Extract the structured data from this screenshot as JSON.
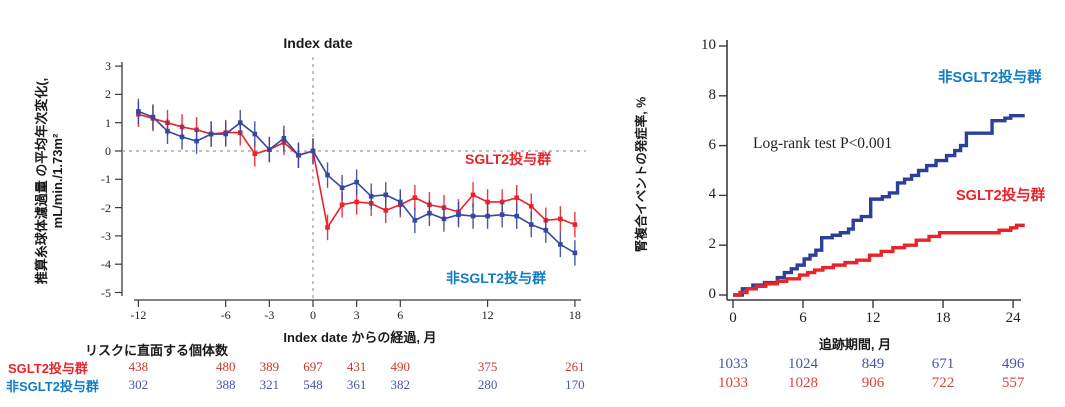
{
  "colors": {
    "red_series": "#e8232a",
    "blue_series_left": "#3547a0",
    "blue_series_km": "#2c3f9a",
    "blue_label": "#0e7dc4",
    "table_red": "#c8382c",
    "table_blue": "#4a55a8",
    "axis": "#3a3a3a",
    "dashed": "#999999"
  },
  "left_chart": {
    "index_date_label": "Index date",
    "ylabel_line1": "推算糸球体濾過量 の平均年次変化(,",
    "ylabel_line2": "mL/min./1.73m²",
    "xlabel": "Index date からの経過, 月",
    "series_label_red": "SGLT2投与群",
    "series_label_blue": "非SGLT2投与群"
  },
  "left_risk_table": {
    "title": "リスクに直面する個体数",
    "row_red_label": "SGLT2投与群",
    "row_blue_label": "非SGLT2投与群"
  },
  "right_chart": {
    "ylabel": "腎複合イベントの発症率, %",
    "xlabel": "追跡期間, 月",
    "annotation": "Log-rank test P<0.001",
    "series_label_blue": "非SGLT2投与群",
    "series_label_red": "SGLT2投与群"
  },
  "chart_data": [
    {
      "type": "line",
      "title": "Index date",
      "xlabel": "Index date からの経過, 月",
      "ylabel": "推算糸球体濾過量 の平均年次変化(, mL/min./1.73m²",
      "xlim": [
        -13,
        19
      ],
      "ylim": [
        -5.2,
        3.2
      ],
      "xticks": [
        -12,
        -6,
        -3,
        0,
        3,
        6,
        12,
        18
      ],
      "yticks": [
        3,
        2,
        1,
        0,
        -1,
        -2,
        -3,
        -4,
        -5
      ],
      "grid": false,
      "reference": {
        "vline_x": 0,
        "hline_y": 0
      },
      "error_bar_half": 0.45,
      "x": [
        -12,
        -11,
        -10,
        -9,
        -8,
        -7,
        -6,
        -5,
        -4,
        -3,
        -2,
        -1,
        0,
        1,
        2,
        3,
        4,
        5,
        6,
        7,
        8,
        9,
        10,
        11,
        12,
        13,
        14,
        15,
        16,
        17,
        18
      ],
      "series": [
        {
          "name": "SGLT2投与群",
          "color": "#e8232a",
          "values": [
            1.3,
            1.15,
            1.0,
            0.85,
            0.75,
            0.6,
            0.65,
            0.65,
            -0.1,
            0.05,
            0.3,
            -0.15,
            0,
            -2.7,
            -1.9,
            -1.8,
            -1.85,
            -2.1,
            -1.9,
            -1.65,
            -1.9,
            -2.0,
            -2.15,
            -1.55,
            -1.8,
            -1.8,
            -1.65,
            -1.95,
            -2.45,
            -2.4,
            -2.6
          ]
        },
        {
          "name": "非SGLT2投与群",
          "color": "#3547a0",
          "values": [
            1.4,
            1.2,
            0.7,
            0.5,
            0.35,
            0.6,
            0.6,
            1.0,
            0.6,
            0.05,
            0.45,
            -0.15,
            0,
            -0.85,
            -1.3,
            -1.1,
            -1.6,
            -1.55,
            -1.8,
            -2.45,
            -2.2,
            -2.4,
            -2.25,
            -2.3,
            -2.3,
            -2.25,
            -2.3,
            -2.6,
            -2.8,
            -3.3,
            -3.6
          ]
        }
      ],
      "at_risk": {
        "title": "リスクに直面する個体数",
        "tick_positions": [
          -12,
          -6,
          -3,
          0,
          3,
          6,
          12,
          18
        ],
        "rows": [
          {
            "label": "SGLT2投与群",
            "color": "#c8382c",
            "counts": [
              438,
              480,
              389,
              697,
              431,
              490,
              375,
              261
            ]
          },
          {
            "label": "非SGLT2投与群",
            "color": "#4a55a8",
            "counts": [
              302,
              388,
              321,
              548,
              361,
              382,
              280,
              170
            ]
          }
        ]
      }
    },
    {
      "type": "line",
      "subtype": "kaplan-meier-step",
      "annotation": "Log-rank test P<0.001",
      "xlabel": "追跡期間, 月",
      "ylabel": "腎複合イベントの発症率, %",
      "xlim": [
        -0.5,
        25.5
      ],
      "ylim": [
        0,
        10
      ],
      "xticks": [
        0,
        6,
        12,
        18,
        24
      ],
      "yticks": [
        0,
        2,
        4,
        6,
        8,
        10
      ],
      "grid": false,
      "series": [
        {
          "name": "非SGLT2投与群",
          "color": "#2c3f9a",
          "steps": [
            [
              0,
              0
            ],
            [
              0.8,
              0.25
            ],
            [
              1.7,
              0.4
            ],
            [
              2.7,
              0.5
            ],
            [
              3.8,
              0.7
            ],
            [
              4.4,
              0.9
            ],
            [
              5,
              1.05
            ],
            [
              5.5,
              1.2
            ],
            [
              6.1,
              1.45
            ],
            [
              6.6,
              1.6
            ],
            [
              7.1,
              1.8
            ],
            [
              7.6,
              2.3
            ],
            [
              8.5,
              2.4
            ],
            [
              9.2,
              2.5
            ],
            [
              9.9,
              2.65
            ],
            [
              10.3,
              3.0
            ],
            [
              11,
              3.15
            ],
            [
              11.8,
              3.85
            ],
            [
              12.8,
              3.95
            ],
            [
              13.4,
              4.1
            ],
            [
              14.1,
              4.5
            ],
            [
              14.7,
              4.65
            ],
            [
              15.3,
              4.8
            ],
            [
              15.9,
              5.0
            ],
            [
              16.6,
              5.2
            ],
            [
              17.4,
              5.4
            ],
            [
              18.3,
              5.6
            ],
            [
              19,
              5.8
            ],
            [
              19.5,
              6.0
            ],
            [
              20,
              6.5
            ],
            [
              22.2,
              7.0
            ],
            [
              23.3,
              7.1
            ],
            [
              23.8,
              7.2
            ],
            [
              25,
              7.2
            ]
          ]
        },
        {
          "name": "SGLT2投与群",
          "color": "#e8232a",
          "steps": [
            [
              0,
              0
            ],
            [
              0.6,
              0.1
            ],
            [
              1.2,
              0.25
            ],
            [
              2,
              0.35
            ],
            [
              2.8,
              0.45
            ],
            [
              3.8,
              0.55
            ],
            [
              4.6,
              0.65
            ],
            [
              5.7,
              0.8
            ],
            [
              6.4,
              0.9
            ],
            [
              7,
              1.0
            ],
            [
              7.7,
              1.1
            ],
            [
              8.6,
              1.2
            ],
            [
              9.6,
              1.3
            ],
            [
              10.6,
              1.4
            ],
            [
              11.7,
              1.6
            ],
            [
              12.7,
              1.75
            ],
            [
              13.7,
              1.9
            ],
            [
              14.7,
              2.0
            ],
            [
              15.7,
              2.2
            ],
            [
              16.8,
              2.35
            ],
            [
              17.7,
              2.5
            ],
            [
              22.8,
              2.6
            ],
            [
              23.8,
              2.7
            ],
            [
              24.3,
              2.8
            ],
            [
              25,
              2.8
            ]
          ]
        }
      ],
      "at_risk": {
        "tick_positions": [
          0,
          6,
          12,
          18,
          24
        ],
        "rows": [
          {
            "color": "#4a55a8",
            "counts": [
              1033,
              1024,
              849,
              671,
              496
            ]
          },
          {
            "color": "#d9453a",
            "counts": [
              1033,
              1028,
              906,
              722,
              557
            ]
          }
        ]
      }
    }
  ]
}
